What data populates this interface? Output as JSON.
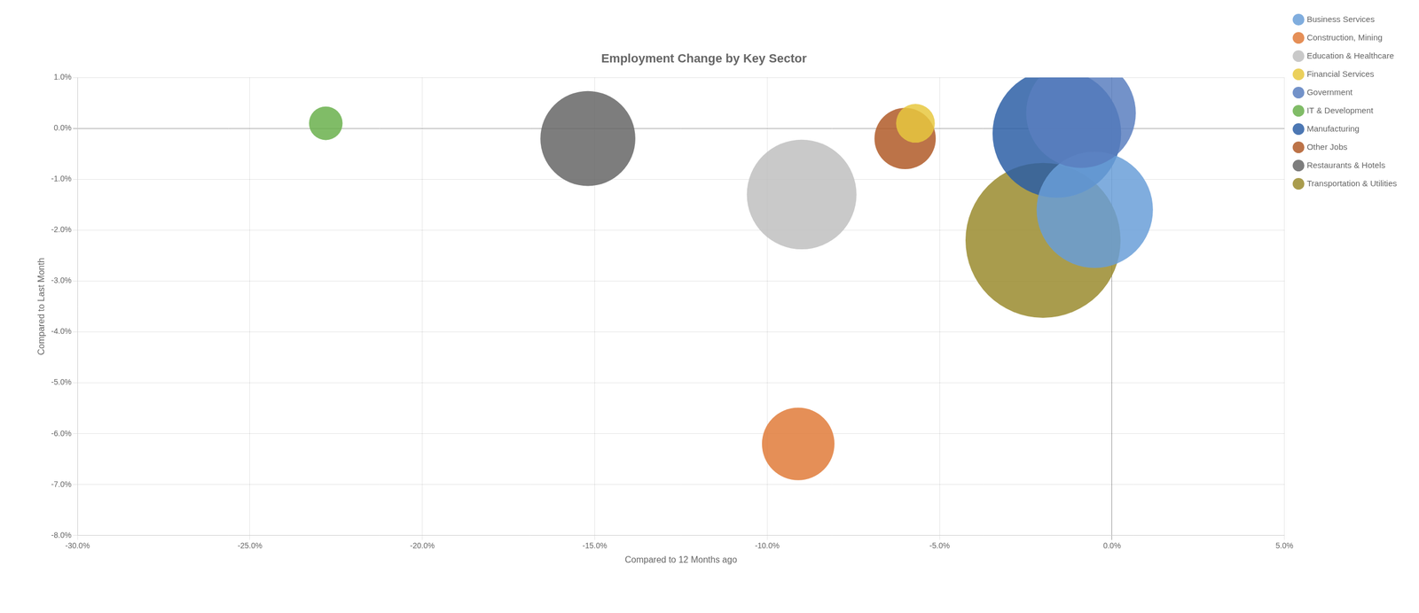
{
  "chart_data": {
    "type": "bubble",
    "title": "Employment Change by Key Sector",
    "xlabel": "Compared to 12 Months ago",
    "ylabel": "Compared to Last Month",
    "xlim": [
      -0.3,
      0.05
    ],
    "ylim": [
      -0.08,
      0.01
    ],
    "xticks": [
      {
        "value": -0.3,
        "label": "-30.0%"
      },
      {
        "value": -0.25,
        "label": "-25.0%"
      },
      {
        "value": -0.2,
        "label": "-20.0%"
      },
      {
        "value": -0.15,
        "label": "-15.0%"
      },
      {
        "value": -0.1,
        "label": "-10.0%"
      },
      {
        "value": -0.05,
        "label": "-5.0%"
      },
      {
        "value": 0.0,
        "label": "0.0%"
      },
      {
        "value": 0.05,
        "label": "5.0%"
      }
    ],
    "yticks": [
      {
        "value": -0.08,
        "label": "-8.0%"
      },
      {
        "value": -0.07,
        "label": "-7.0%"
      },
      {
        "value": -0.06,
        "label": "-6.0%"
      },
      {
        "value": -0.05,
        "label": "-5.0%"
      },
      {
        "value": -0.04,
        "label": "-4.0%"
      },
      {
        "value": -0.03,
        "label": "-3.0%"
      },
      {
        "value": -0.02,
        "label": "-2.0%"
      },
      {
        "value": -0.01,
        "label": "-1.0%"
      },
      {
        "value": 0.0,
        "label": "0.0%"
      },
      {
        "value": 0.01,
        "label": "1.0%"
      }
    ],
    "grid": true,
    "legend": "right",
    "series": [
      {
        "name": "Business Services",
        "color": "#6a9fd8",
        "x": [
          -0.005
        ],
        "y": [
          -0.016
        ],
        "size": [
          18000
        ]
      },
      {
        "name": "Construction, Mining",
        "color": "#e07b39",
        "x": [
          -0.091
        ],
        "y": [
          -0.062
        ],
        "size": [
          7000
        ]
      },
      {
        "name": "Education & Healthcare",
        "color": "#c0c0c0",
        "x": [
          -0.09
        ],
        "y": [
          -0.013
        ],
        "size": [
          16000
        ]
      },
      {
        "name": "Financial Services",
        "color": "#e8c840",
        "x": [
          -0.057
        ],
        "y": [
          0.001
        ],
        "size": [
          2000
        ]
      },
      {
        "name": "Government",
        "color": "#5a7fc0",
        "x": [
          -0.009
        ],
        "y": [
          0.003
        ],
        "size": [
          16000
        ]
      },
      {
        "name": "IT & Development",
        "color": "#6ab04c",
        "x": [
          -0.228
        ],
        "y": [
          0.001
        ],
        "size": [
          1500
        ]
      },
      {
        "name": "Manufacturing",
        "color": "#2d5fa6",
        "x": [
          -0.016
        ],
        "y": [
          -0.001
        ],
        "size": [
          22000
        ]
      },
      {
        "name": "Other Jobs",
        "color": "#b05a28",
        "x": [
          -0.06
        ],
        "y": [
          -0.002
        ],
        "size": [
          5000
        ]
      },
      {
        "name": "Restaurants & Hotels",
        "color": "#666666",
        "x": [
          -0.152
        ],
        "y": [
          -0.002
        ],
        "size": [
          12000
        ]
      },
      {
        "name": "Transportation & Utilities",
        "color": "#9a8b2e",
        "x": [
          -0.02
        ],
        "y": [
          -0.022
        ],
        "size": [
          32000
        ]
      }
    ]
  }
}
